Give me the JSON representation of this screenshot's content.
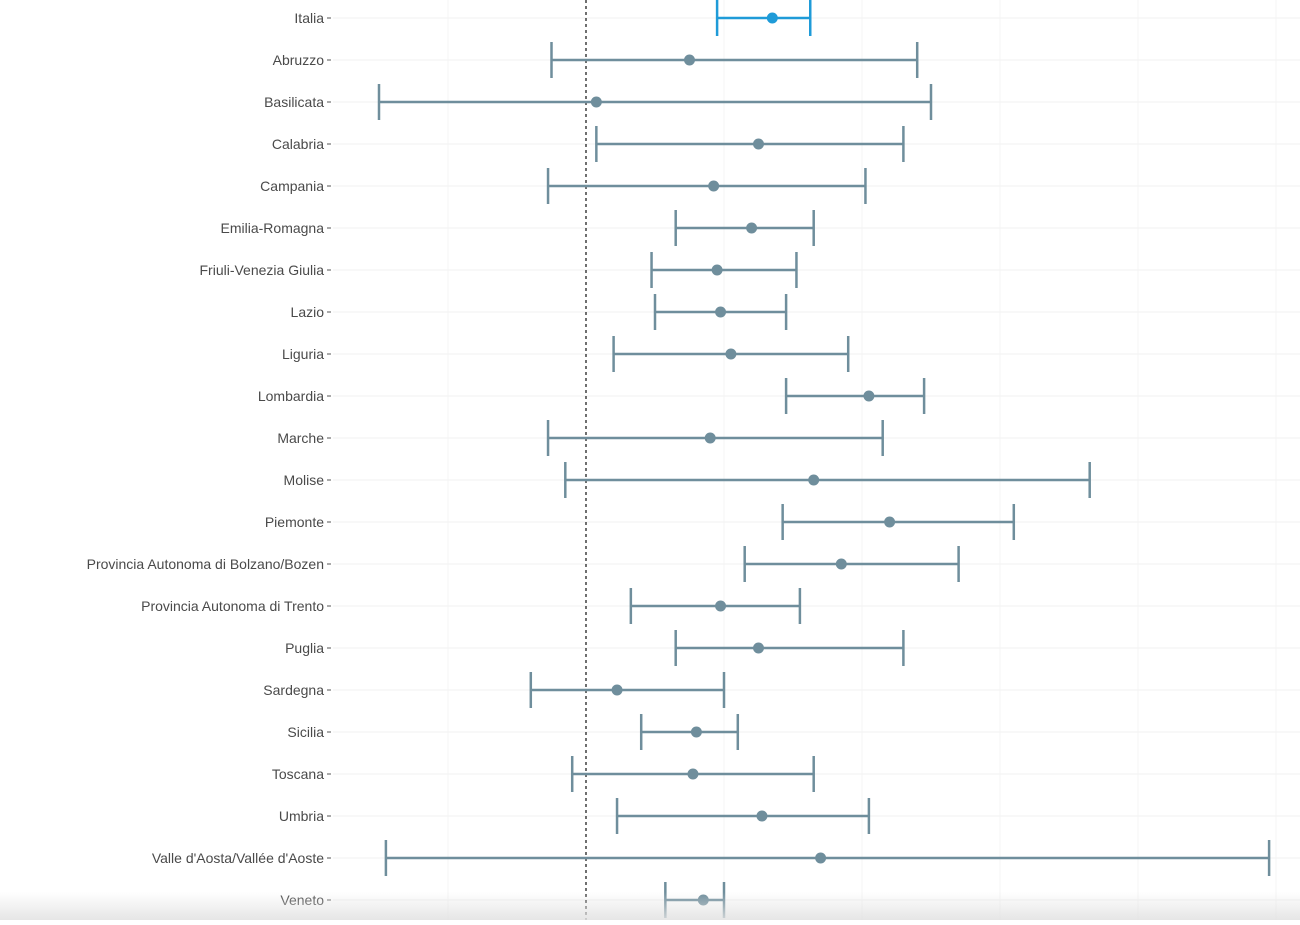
{
  "chart_data": {
    "type": "errorbar",
    "orientation": "horizontal",
    "title": "",
    "xlabel": "",
    "ylabel": "",
    "xlim": [
      -0.2,
      1.35
    ],
    "reference_line": {
      "x": 0,
      "style": "dashed"
    },
    "grid": "light",
    "colors": {
      "highlight": "#1f9bd8",
      "default": "#6f8e9c",
      "reference": "#222222",
      "grid": "#f0f0f0",
      "label": "#4a4a4a"
    },
    "categories": [
      "Italia",
      "Abruzzo",
      "Basilicata",
      "Calabria",
      "Campania",
      "Emilia-Romagna",
      "Friuli-Venezia Giulia",
      "Lazio",
      "Liguria",
      "Lombardia",
      "Marche",
      "Molise",
      "Piemonte",
      "Provincia Autonoma di Bolzano/Bozen",
      "Provincia Autonoma di Trento",
      "Puglia",
      "Sardegna",
      "Sicilia",
      "Toscana",
      "Umbria",
      "Valle d'Aosta/Vallée d'Aoste",
      "Veneto"
    ],
    "estimate": [
      0.27,
      0.15,
      0.015,
      0.25,
      0.185,
      0.24,
      0.19,
      0.195,
      0.21,
      0.41,
      0.18,
      0.33,
      0.44,
      0.37,
      0.195,
      0.25,
      0.045,
      0.16,
      0.155,
      0.255,
      0.34,
      0.17
    ],
    "lower": [
      0.19,
      -0.05,
      -0.3,
      0.015,
      -0.055,
      0.13,
      0.095,
      0.1,
      0.04,
      0.29,
      -0.055,
      -0.03,
      0.285,
      0.23,
      0.065,
      0.13,
      -0.08,
      0.08,
      -0.02,
      0.045,
      -0.29,
      0.115
    ],
    "upper": [
      0.325,
      0.48,
      0.5,
      0.46,
      0.405,
      0.33,
      0.305,
      0.29,
      0.38,
      0.49,
      0.43,
      0.73,
      0.62,
      0.54,
      0.31,
      0.46,
      0.2,
      0.22,
      0.33,
      0.41,
      0.99,
      0.2
    ],
    "highlight_index": 0
  }
}
